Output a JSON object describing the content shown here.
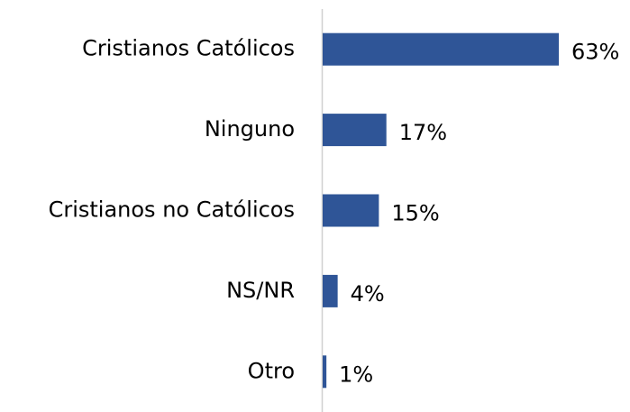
{
  "chart_data": {
    "type": "barh",
    "categories": [
      "Cristianos Católicos",
      "Ninguno",
      "Cristianos no Católicos",
      "NS/NR",
      "Otro"
    ],
    "values": [
      63,
      17,
      15,
      4,
      1
    ],
    "value_labels": [
      "63%",
      "17%",
      "15%",
      "4%",
      "1%"
    ],
    "color": "#2f5597"
  }
}
